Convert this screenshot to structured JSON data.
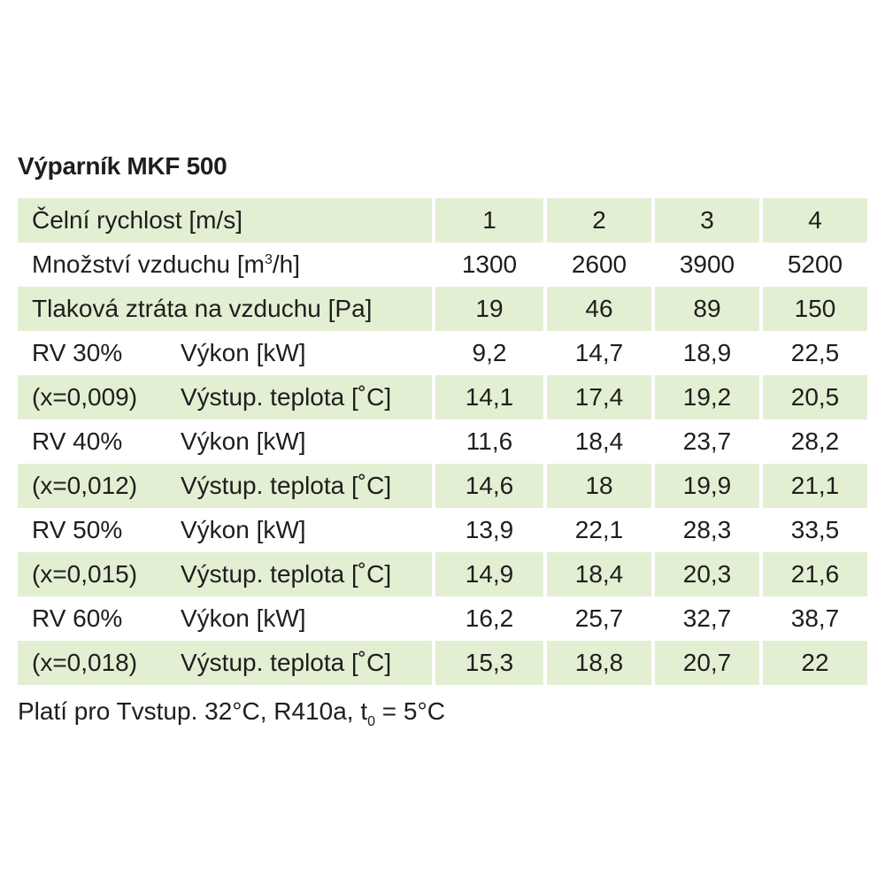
{
  "title": "Výparník MKF 500",
  "header_row": {
    "label": "Čelní rychlost [m/s]",
    "values": [
      "1",
      "2",
      "3",
      "4"
    ]
  },
  "air_row": {
    "label_pre": "Množství vzduchu [m",
    "label_sup": "3",
    "label_post": "/h]",
    "values": [
      "1300",
      "2600",
      "3900",
      "5200"
    ]
  },
  "pressure_row": {
    "label": "Tlaková ztráta na vzduchu [Pa]",
    "values": [
      "19",
      "46",
      "89",
      "150"
    ]
  },
  "rows": [
    {
      "c1": "RV 30%",
      "c2": "Výkon [kW]",
      "values": [
        "9,2",
        "14,7",
        "18,9",
        "22,5"
      ]
    },
    {
      "c1": "(x=0,009)",
      "c2": "Výstup. teplota [˚C]",
      "values": [
        "14,1",
        "17,4",
        "19,2",
        "20,5"
      ]
    },
    {
      "c1": "RV 40%",
      "c2": "Výkon [kW]",
      "values": [
        "11,6",
        "18,4",
        "23,7",
        "28,2"
      ]
    },
    {
      "c1": "(x=0,012)",
      "c2": "Výstup. teplota [˚C]",
      "values": [
        "14,6",
        "18",
        "19,9",
        "21,1"
      ]
    },
    {
      "c1": "RV 50%",
      "c2": "Výkon [kW]",
      "values": [
        "13,9",
        "22,1",
        "28,3",
        "33,5"
      ]
    },
    {
      "c1": "(x=0,015)",
      "c2": "Výstup. teplota [˚C]",
      "values": [
        "14,9",
        "18,4",
        "20,3",
        "21,6"
      ]
    },
    {
      "c1": "RV 60%",
      "c2": "Výkon [kW]",
      "values": [
        "16,2",
        "25,7",
        "32,7",
        "38,7"
      ]
    },
    {
      "c1": "(x=0,018)",
      "c2": "Výstup. teplota [˚C]",
      "values": [
        "15,3",
        "18,8",
        "20,7",
        "22"
      ]
    }
  ],
  "note": {
    "pre": "Platí pro Tvstup. 32°C, R410a, t",
    "sub": "0",
    "post": " = 5°C"
  },
  "colors": {
    "row_shade": "#e3efd2",
    "text": "#1e1e1e"
  }
}
